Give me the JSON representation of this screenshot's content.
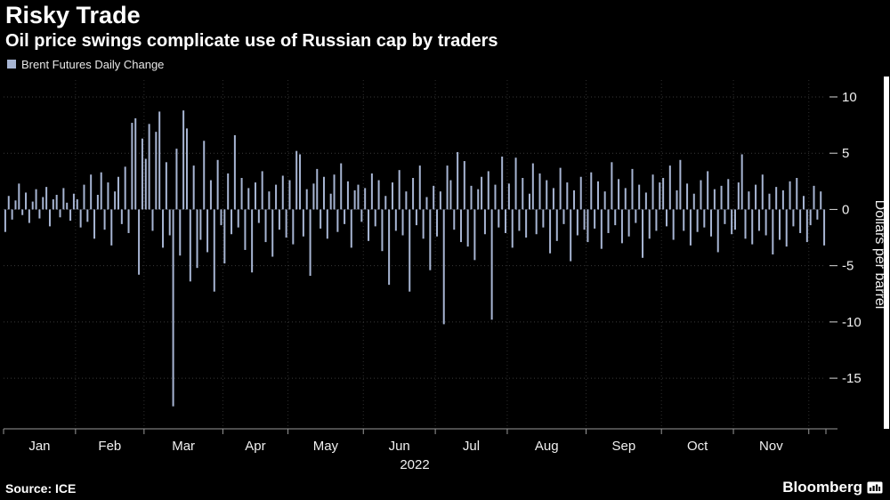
{
  "header": {
    "title": "Risky Trade",
    "subtitle": "Oil price swings complicate use of Russian cap by traders"
  },
  "legend": {
    "label": "Brent Futures Daily Change",
    "swatch_color": "#a7b5d3"
  },
  "footer": {
    "source": "Source: ICE",
    "brand": "Bloomberg"
  },
  "chart_data": {
    "type": "bar",
    "title": "Risky Trade",
    "subtitle": "Oil price swings complicate use of Russian cap by traders",
    "series_name": "Brent Futures Daily Change",
    "xlabel": "2022",
    "ylabel": "Dollars per barrel",
    "ylim": [
      -19.5,
      11.5
    ],
    "yticks": [
      10,
      5,
      0,
      -5,
      -10,
      -15
    ],
    "grid": "dotted",
    "legend_position": "top-left",
    "bar_color": "#a7b5d3",
    "months": [
      {
        "label": "Jan",
        "days": 21
      },
      {
        "label": "Feb",
        "days": 20
      },
      {
        "label": "Mar",
        "days": 23
      },
      {
        "label": "Apr",
        "days": 19
      },
      {
        "label": "May",
        "days": 22
      },
      {
        "label": "Jun",
        "days": 21
      },
      {
        "label": "Jul",
        "days": 21
      },
      {
        "label": "Aug",
        "days": 23
      },
      {
        "label": "Sep",
        "days": 22
      },
      {
        "label": "Oct",
        "days": 21
      },
      {
        "label": "Nov",
        "days": 22
      },
      {
        "label": "",
        "days": 5
      }
    ],
    "values": [
      -2.0,
      1.2,
      -0.9,
      0.8,
      2.3,
      -0.5,
      1.5,
      -1.2,
      0.7,
      1.8,
      -0.8,
      1.1,
      2.0,
      -1.5,
      0.9,
      1.3,
      -0.7,
      1.9,
      0.6,
      -1.0,
      1.4,
      0.9,
      -1.6,
      2.2,
      -1.1,
      3.1,
      -2.6,
      1.3,
      3.3,
      -1.8,
      2.4,
      -3.2,
      1.6,
      2.9,
      -1.3,
      3.8,
      -2.1,
      7.7,
      8.1,
      -5.8,
      6.3,
      4.5,
      7.6,
      -1.9,
      6.9,
      8.7,
      -3.4,
      4.2,
      -2.3,
      -17.5,
      5.4,
      -4.1,
      8.8,
      7.2,
      -6.4,
      3.9,
      -5.2,
      -2.7,
      6.1,
      -3.8,
      2.6,
      -7.3,
      4.4,
      -1.4,
      -4.8,
      3.2,
      -2.2,
      6.6,
      -1.6,
      2.8,
      -3.6,
      1.9,
      -5.6,
      2.4,
      -1.2,
      3.4,
      -2.9,
      1.6,
      -4.2,
      2.2,
      -1.8,
      3.0,
      -2.5,
      2.6,
      -3.1,
      5.2,
      4.9,
      -2.4,
      1.8,
      -5.9,
      2.3,
      3.6,
      -1.7,
      2.9,
      -2.6,
      1.4,
      3.1,
      -2.0,
      4.1,
      -1.3,
      2.5,
      -3.4,
      1.7,
      2.2,
      -1.1,
      1.9,
      -2.8,
      3.2,
      -1.5,
      2.6,
      -3.7,
      1.2,
      -6.7,
      2.4,
      -1.9,
      3.5,
      -2.3,
      1.6,
      -7.3,
      2.8,
      -1.4,
      3.9,
      -2.6,
      1.1,
      -5.4,
      2.1,
      -2.4,
      1.6,
      -10.2,
      3.9,
      2.6,
      -1.8,
      5.1,
      -2.9,
      4.3,
      -3.3,
      2.1,
      -4.5,
      1.8,
      2.9,
      -2.2,
      3.4,
      -9.8,
      2.2,
      -1.6,
      4.7,
      -2.1,
      2.3,
      -3.4,
      4.6,
      -1.9,
      2.8,
      -2.5,
      1.4,
      4.1,
      -2.2,
      3.2,
      -1.6,
      2.6,
      -3.9,
      1.9,
      -2.8,
      3.7,
      -1.3,
      2.4,
      -4.6,
      1.7,
      -2.3,
      2.9,
      -1.8,
      -2.9,
      3.3,
      -1.7,
      2.5,
      -3.5,
      1.6,
      -2.1,
      4.2,
      -1.4,
      2.7,
      -3.0,
      1.9,
      -2.4,
      3.6,
      -1.2,
      2.2,
      -4.3,
      1.5,
      -2.6,
      3.1,
      -1.9,
      2.4,
      2.8,
      -1.5,
      3.9,
      -2.7,
      1.7,
      4.4,
      -1.9,
      2.3,
      -3.2,
      1.4,
      -2.0,
      2.6,
      -1.6,
      3.4,
      -2.4,
      1.8,
      -3.8,
      2.1,
      -1.3,
      2.7,
      -2.2,
      -1.8,
      2.4,
      4.9,
      -2.6,
      1.6,
      -3.1,
      2.2,
      -1.9,
      3.1,
      -2.3,
      1.4,
      -4.0,
      2.0,
      -2.7,
      1.7,
      -3.3,
      2.5,
      -1.5,
      2.8,
      -2.1,
      1.2,
      -2.9,
      -1.4,
      2.1,
      -0.9,
      1.6,
      -3.2
    ]
  }
}
